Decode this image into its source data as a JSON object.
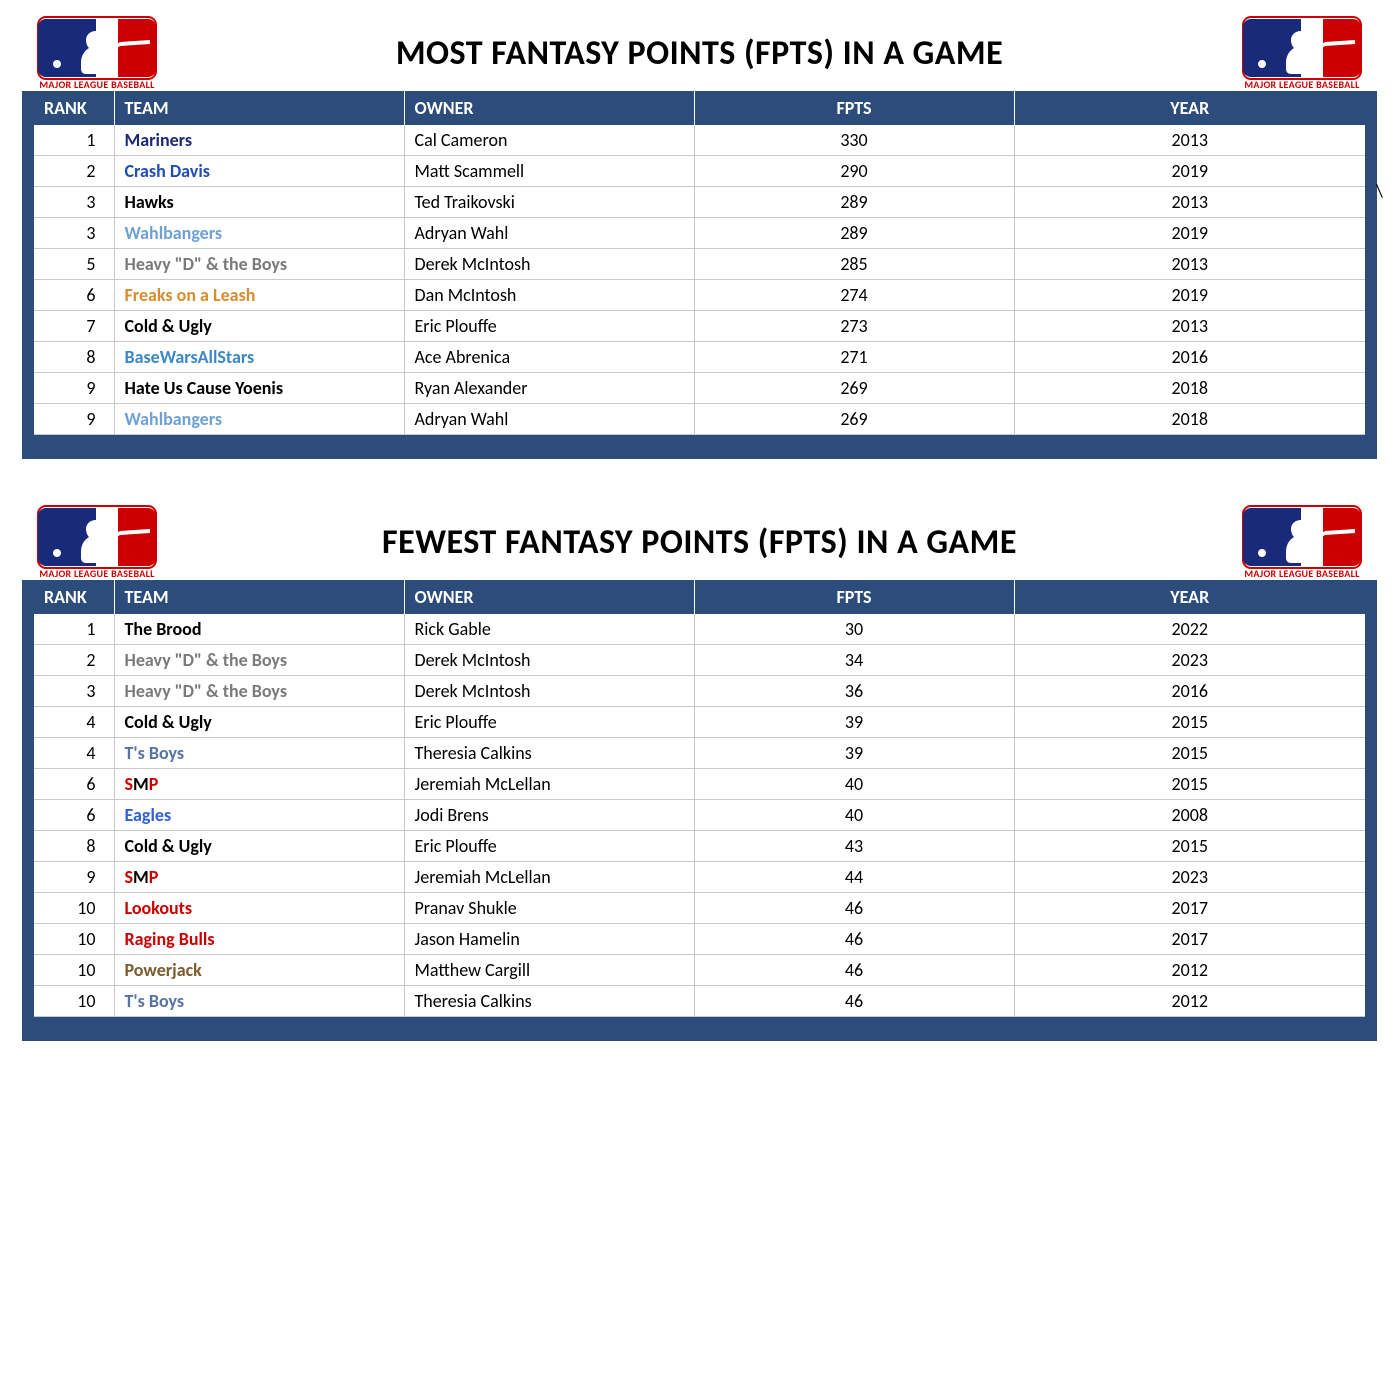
{
  "logo_caption": "MAJOR LEAGUE BASEBALL",
  "panels": [
    {
      "title": "MOST FANTASY POINTS (FPTS) IN A GAME",
      "columns": [
        "RANK",
        "TEAM",
        "OWNER",
        "FPTS",
        "YEAR"
      ],
      "rows": [
        {
          "rank": "1",
          "team": "Mariners",
          "team_color": "#1a2a7a",
          "owner": "Cal Cameron",
          "fpts": "330",
          "year": "2013"
        },
        {
          "rank": "2",
          "team": "Crash Davis",
          "team_color": "#1f4db3",
          "owner": "Matt Scammell",
          "fpts": "290",
          "year": "2019"
        },
        {
          "rank": "3",
          "team": "Hawks",
          "team_color": "#000000",
          "owner": "Ted Traikovski",
          "fpts": "289",
          "year": "2013"
        },
        {
          "rank": "3",
          "team": "Wahlbangers",
          "team_color": "#6ea0d6",
          "owner": "Adryan Wahl",
          "fpts": "289",
          "year": "2019"
        },
        {
          "rank": "5",
          "team": "Heavy \"D\" & the Boys",
          "team_color": "#7a7a7a",
          "owner": "Derek McIntosh",
          "fpts": "285",
          "year": "2013"
        },
        {
          "rank": "6",
          "team": "Freaks on a Leash",
          "team_color": "#d98c2e",
          "owner": "Dan McIntosh",
          "fpts": "274",
          "year": "2019"
        },
        {
          "rank": "7",
          "team": "Cold & Ugly",
          "team_color": "#000000",
          "owner": "Eric Plouffe",
          "fpts": "273",
          "year": "2013"
        },
        {
          "rank": "8",
          "team": "BaseWarsAllStars",
          "team_color": "#3c87c7",
          "owner": "Ace Abrenica",
          "fpts": "271",
          "year": "2016"
        },
        {
          "rank": "9",
          "team": "Hate Us Cause Yoenis",
          "team_color": "#000000",
          "owner": "Ryan Alexander",
          "fpts": "269",
          "year": "2018"
        },
        {
          "rank": "9",
          "team": "Wahlbangers",
          "team_color": "#6ea0d6",
          "owner": "Adryan Wahl",
          "fpts": "269",
          "year": "2018"
        }
      ],
      "stray_mark": "\\"
    },
    {
      "title": "FEWEST FANTASY POINTS (FPTS) IN A GAME",
      "columns": [
        "RANK",
        "TEAM",
        "OWNER",
        "FPTS",
        "YEAR"
      ],
      "rows": [
        {
          "rank": "1",
          "team": "The Brood",
          "team_color": "#000000",
          "owner": "Rick Gable",
          "fpts": "30",
          "year": "2022"
        },
        {
          "rank": "2",
          "team": "Heavy \"D\" & the Boys",
          "team_color": "#7a7a7a",
          "owner": "Derek McIntosh",
          "fpts": "34",
          "year": "2023"
        },
        {
          "rank": "3",
          "team": "Heavy \"D\" & the Boys",
          "team_color": "#7a7a7a",
          "owner": "Derek McIntosh",
          "fpts": "36",
          "year": "2016"
        },
        {
          "rank": "4",
          "team": "Cold & Ugly",
          "team_color": "#000000",
          "owner": "Eric Plouffe",
          "fpts": "39",
          "year": "2015"
        },
        {
          "rank": "4",
          "team": "T's Boys",
          "team_color": "#5673a6",
          "owner": "Theresia Calkins",
          "fpts": "39",
          "year": "2015"
        },
        {
          "rank": "6",
          "team_parts": [
            {
              "t": "S",
              "c": "#cc0000"
            },
            {
              "t": "M",
              "c": "#000000"
            },
            {
              "t": "P",
              "c": "#cc0000"
            }
          ],
          "owner": "Jeremiah McLellan",
          "fpts": "40",
          "year": "2015"
        },
        {
          "rank": "6",
          "team": "Eagles",
          "team_color": "#3060d6",
          "owner": "Jodi Brens",
          "fpts": "40",
          "year": "2008"
        },
        {
          "rank": "8",
          "team": "Cold & Ugly",
          "team_color": "#000000",
          "owner": "Eric Plouffe",
          "fpts": "43",
          "year": "2015"
        },
        {
          "rank": "9",
          "team_parts": [
            {
              "t": "S",
              "c": "#cc0000"
            },
            {
              "t": "M",
              "c": "#000000"
            },
            {
              "t": "P",
              "c": "#cc0000"
            }
          ],
          "owner": "Jeremiah McLellan",
          "fpts": "44",
          "year": "2023"
        },
        {
          "rank": "10",
          "team": "Lookouts",
          "team_color": "#cc0000",
          "owner": "Pranav Shukle",
          "fpts": "46",
          "year": "2017"
        },
        {
          "rank": "10",
          "team": "Raging Bulls",
          "team_color": "#cc0000",
          "owner": "Jason Hamelin",
          "fpts": "46",
          "year": "2017"
        },
        {
          "rank": "10",
          "team": "Powerjack",
          "team_color": "#7a5c2e",
          "owner": "Matthew Cargill",
          "fpts": "46",
          "year": "2012"
        },
        {
          "rank": "10",
          "team": "T's Boys",
          "team_color": "#5673a6",
          "owner": "Theresia Calkins",
          "fpts": "46",
          "year": "2012"
        }
      ]
    }
  ],
  "style": {
    "panel_bg": "#2c4c7c",
    "header_bg": "#2c4c7c",
    "header_fg": "#ffffff",
    "row_border": "#c8c8c8",
    "title_color": "#000000",
    "title_fontsize": 34,
    "cell_fontsize": 18,
    "logo_red": "#cc0000",
    "logo_blue": "#1a2a7a",
    "logo_white": "#ffffff"
  }
}
